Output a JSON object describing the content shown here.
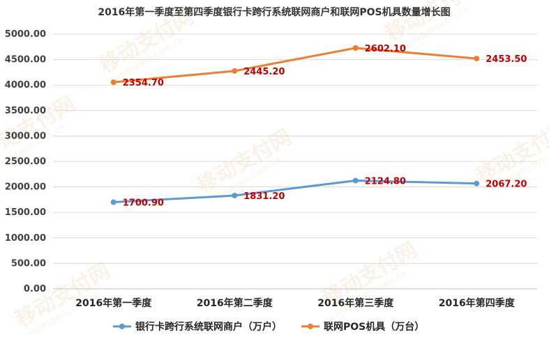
{
  "watermark": {
    "text": "移动支付网",
    "subtext": "mpaypass.com.cn"
  },
  "colors": {
    "merchants": "#5b9bd5",
    "pos": "#ed7d31",
    "label": "#c00000",
    "grid": "#d9d9d9"
  },
  "chart_data": {
    "type": "line",
    "title": "2016年第一季度至第四季度银行卡跨行系统联网商户和联网POS机具数量增长图",
    "categories": [
      "2016年第一季度",
      "2016年第二季度",
      "2016年第三季度",
      "2016年第四季度"
    ],
    "ylim": [
      0,
      5000
    ],
    "yticks": [
      "0.00",
      "500.00",
      "1000.00",
      "1500.00",
      "2000.00",
      "2500.00",
      "3000.00",
      "3500.00",
      "4000.00",
      "4500.00",
      "5000.00"
    ],
    "grid": true,
    "legend_position": "bottom",
    "series": [
      {
        "name": "银行卡跨行系统联网商户（万户）",
        "plot_values": [
          1700.9,
          1831.2,
          2124.8,
          2067.2
        ],
        "labels": [
          "1700.90",
          "1831.20",
          "2124.80",
          "2067.20"
        ]
      },
      {
        "name": "联网POS机具（万台）",
        "plot_values": [
          4055.6,
          4276.4,
          4726.9,
          4520.7
        ],
        "labels": [
          "2354.70",
          "2445.20",
          "2602.10",
          "2453.50"
        ]
      }
    ]
  }
}
